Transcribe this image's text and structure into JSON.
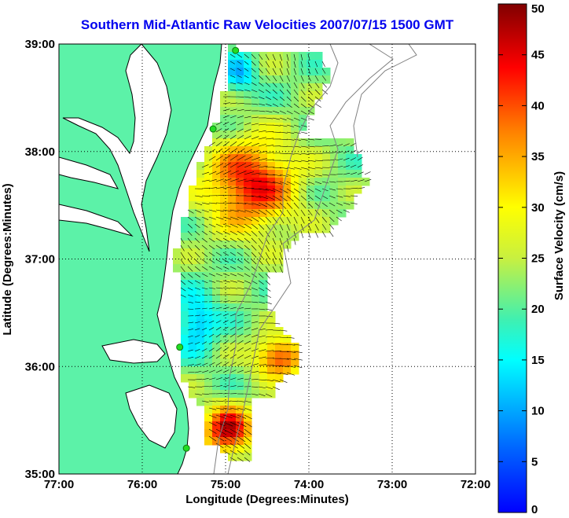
{
  "title": "Southern Mid-Atlantic Raw Velocities 2007/07/15 1500 GMT",
  "chart_data": {
    "type": "map",
    "xlabel": "Longitude (Degrees:Minutes)",
    "ylabel": "Latitude (Degrees:Minutes)",
    "x_ticks": [
      "77:00",
      "76:00",
      "75:00",
      "74:00",
      "73:00",
      "72:00"
    ],
    "y_ticks": [
      "39:00",
      "38:00",
      "37:00",
      "36:00",
      "35:00"
    ],
    "xlim": [
      -77,
      -72
    ],
    "ylim": [
      35,
      39
    ],
    "grid": "dotted",
    "colorbar": {
      "label": "Surface Velocity (cm/s)",
      "ticks": [
        "50",
        "45",
        "40",
        "35",
        "30",
        "25",
        "20",
        "15",
        "10",
        "5",
        "0"
      ],
      "range": [
        0,
        50
      ],
      "colormap": "jet"
    },
    "colors": {
      "land": "#5cf2a8",
      "water": "#ffffff",
      "bathymetry_contour": "#808080",
      "station_marker": "#22dd22",
      "vector": "#000000"
    },
    "stations": [
      {
        "lon": -74.88,
        "lat": 38.94
      },
      {
        "lon": -75.15,
        "lat": 38.21
      },
      {
        "lon": -75.55,
        "lat": 36.18
      },
      {
        "lon": -75.47,
        "lat": 35.24
      }
    ]
  }
}
